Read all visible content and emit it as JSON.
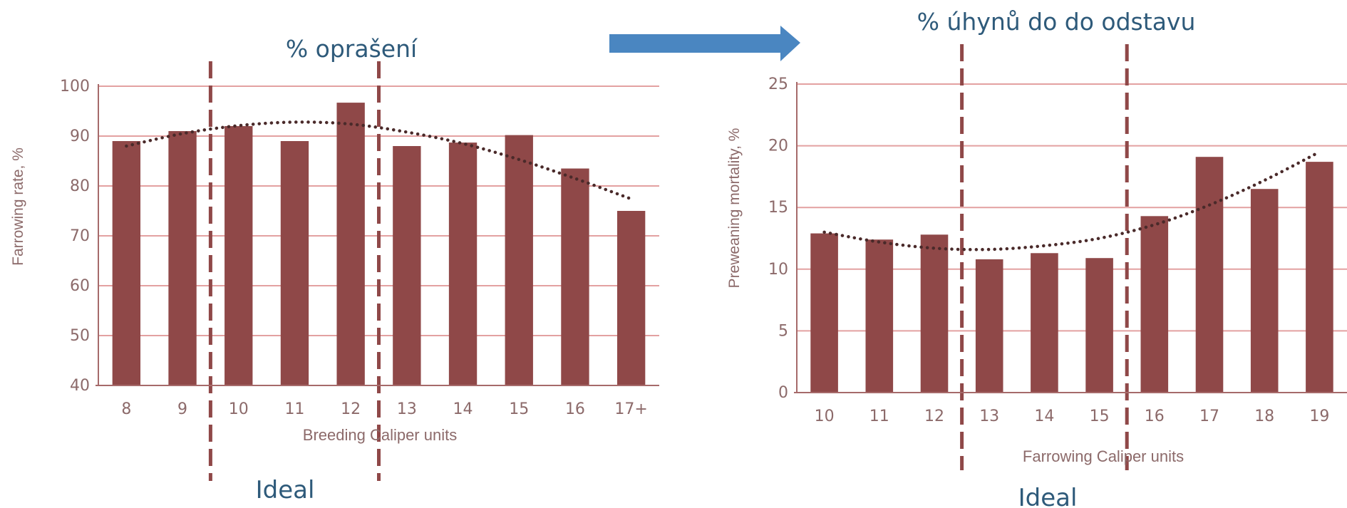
{
  "colors": {
    "bar": "#8f4848",
    "grid": "#e3a1a1",
    "axis": "#a66a6a",
    "text": "#8c6a6a",
    "heading": "#2e5a7a",
    "arrow": "#4a86c1"
  },
  "chart_data": [
    {
      "type": "bar",
      "title": "% oprašení",
      "xlabel": "Breeding Caliper units",
      "ylabel": "Farrowing rate, %",
      "categories": [
        "8",
        "9",
        "10",
        "11",
        "12",
        "13",
        "14",
        "15",
        "16",
        "17+"
      ],
      "values": [
        89,
        91,
        92,
        89,
        96.7,
        88,
        88.7,
        90.2,
        83.5,
        75
      ],
      "trendline": [
        88,
        90.5,
        92.1,
        92.8,
        92.4,
        90.8,
        88.5,
        85.3,
        81.5,
        77.4
      ],
      "ylim": [
        40,
        100
      ],
      "yticks": [
        "40",
        "50",
        "60",
        "70",
        "80",
        "90",
        "100"
      ],
      "ideal_label": "Ideal",
      "ideal_range": [
        9.5,
        12.5
      ],
      "grid": true
    },
    {
      "type": "bar",
      "title": "% úhynů do do odstavu",
      "xlabel": "Farrowing Caliper units",
      "ylabel": "Preweaning mortality, %",
      "categories": [
        "10",
        "11",
        "12",
        "13",
        "14",
        "15",
        "16",
        "17",
        "18",
        "19"
      ],
      "values": [
        12.9,
        12.4,
        12.8,
        10.8,
        11.3,
        10.9,
        14.3,
        19.1,
        16.5,
        18.7
      ],
      "trendline": [
        13,
        12.2,
        11.7,
        11.6,
        11.9,
        12.5,
        13.6,
        15.2,
        17.2,
        19.5
      ],
      "ylim": [
        0,
        25
      ],
      "yticks": [
        "0",
        "5",
        "10",
        "15",
        "20",
        "25"
      ],
      "ideal_label": "Ideal",
      "ideal_range": [
        12.5,
        15.5
      ],
      "grid": true
    }
  ]
}
